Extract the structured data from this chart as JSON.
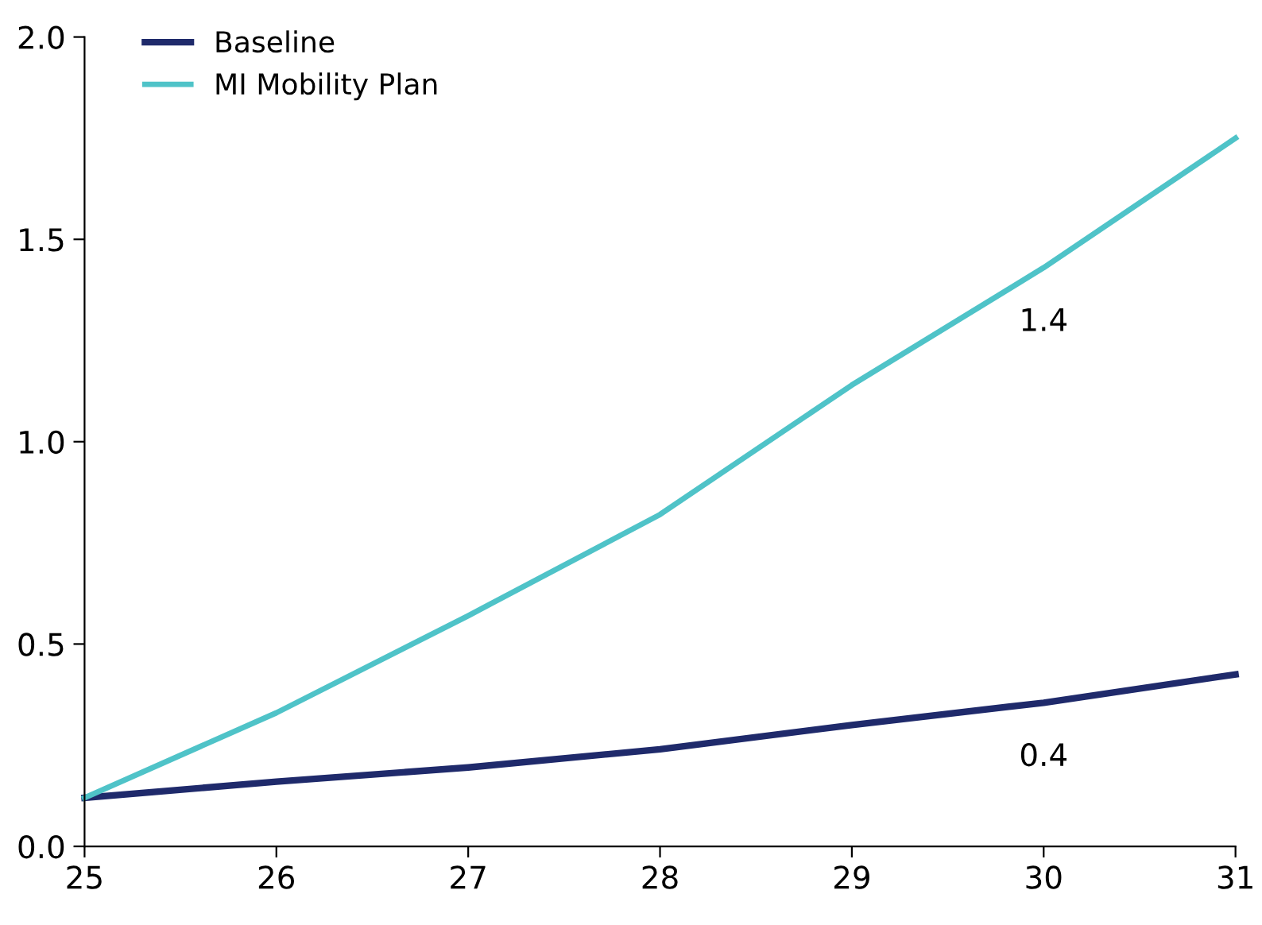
{
  "chart_data": {
    "type": "line",
    "x": [
      25,
      26,
      27,
      28,
      29,
      30,
      31
    ],
    "series": [
      {
        "name": "Baseline",
        "color": "#1f2a6b",
        "values": [
          0.12,
          0.16,
          0.195,
          0.24,
          0.3,
          0.355,
          0.425
        ]
      },
      {
        "name": "MI Mobility Plan",
        "color": "#4fc3c8",
        "values": [
          0.12,
          0.33,
          0.57,
          0.82,
          1.14,
          1.43,
          1.75
        ]
      }
    ],
    "annotations": [
      {
        "text": "1.4",
        "x": 30,
        "y": 1.43
      },
      {
        "text": "0.4",
        "x": 30,
        "y": 0.355
      }
    ],
    "xlim": [
      25,
      31
    ],
    "xticks": [
      25,
      26,
      27,
      28,
      29,
      30,
      31
    ],
    "ylim": [
      0,
      2
    ],
    "yticks": [
      {
        "value": 0,
        "label": "0.0"
      },
      {
        "value": 0.5,
        "label": "0.5"
      },
      {
        "value": 1,
        "label": "1.0"
      },
      {
        "value": 1.5,
        "label": "1.5"
      },
      {
        "value": 2,
        "label": "2.0"
      }
    ],
    "grid": false,
    "legend": "top left",
    "marker": "none",
    "line_style": "solid"
  }
}
